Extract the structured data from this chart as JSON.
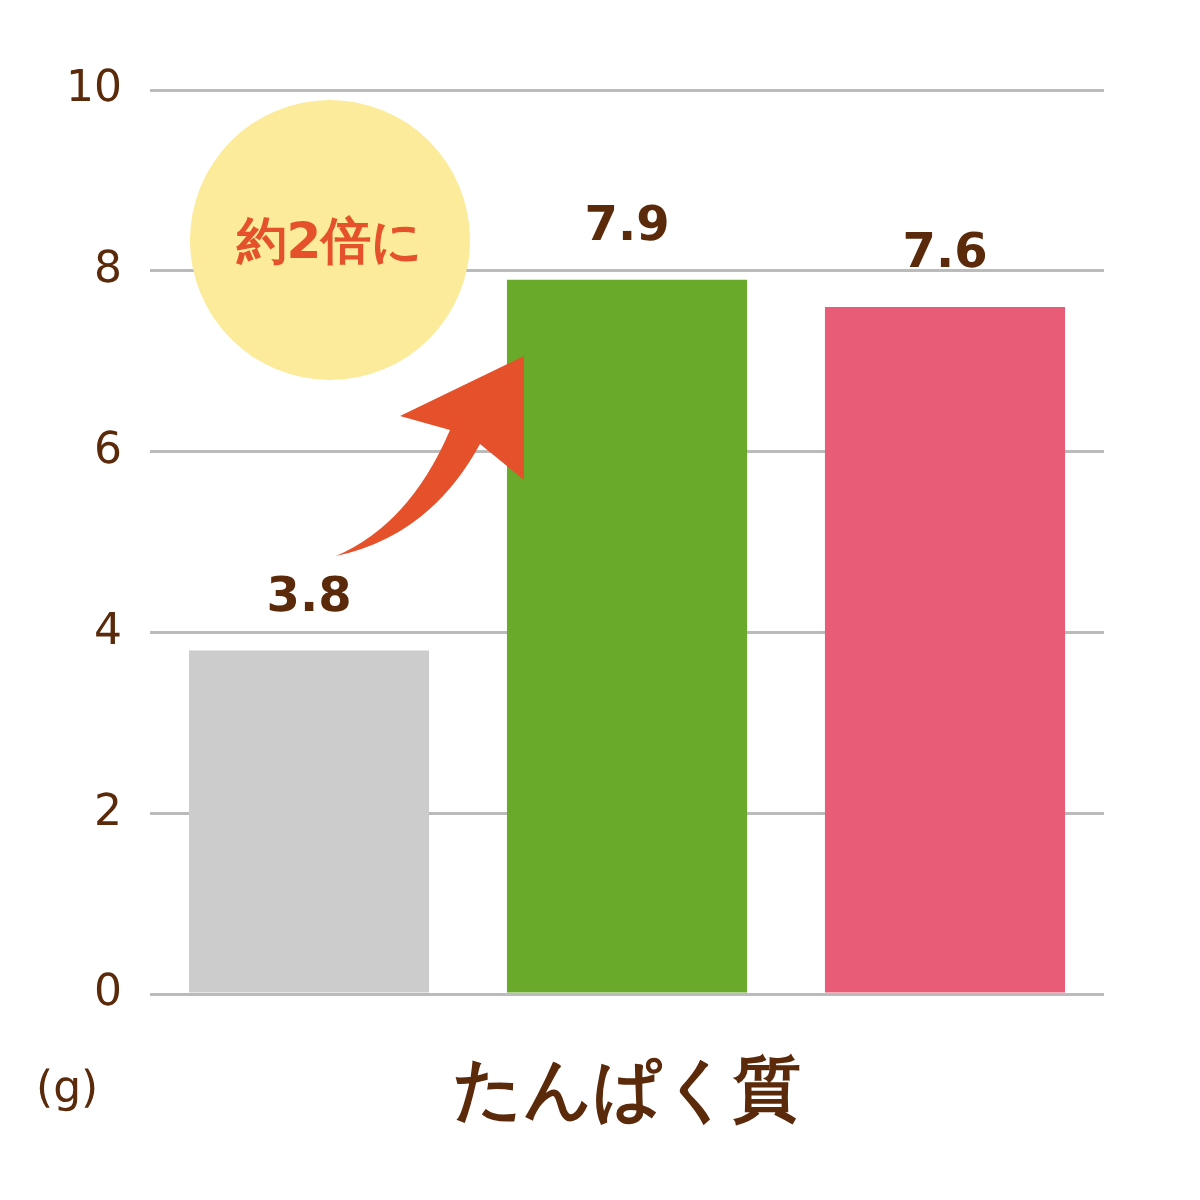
{
  "chart_data": {
    "type": "bar",
    "xlabel": "たんぱく質",
    "ylabel": "(g)",
    "categories": [
      null,
      null,
      null
    ],
    "values": [
      3.8,
      7.9,
      7.6
    ],
    "colors": [
      "#cccccc",
      "#6aaa2a",
      "#e85c78"
    ],
    "ylim": [
      0,
      10
    ],
    "yticks": [
      0,
      2,
      4,
      6,
      8,
      10
    ],
    "grid": "y",
    "legend": false,
    "data_labels": true,
    "annotations": [
      "約2倍に"
    ]
  }
}
